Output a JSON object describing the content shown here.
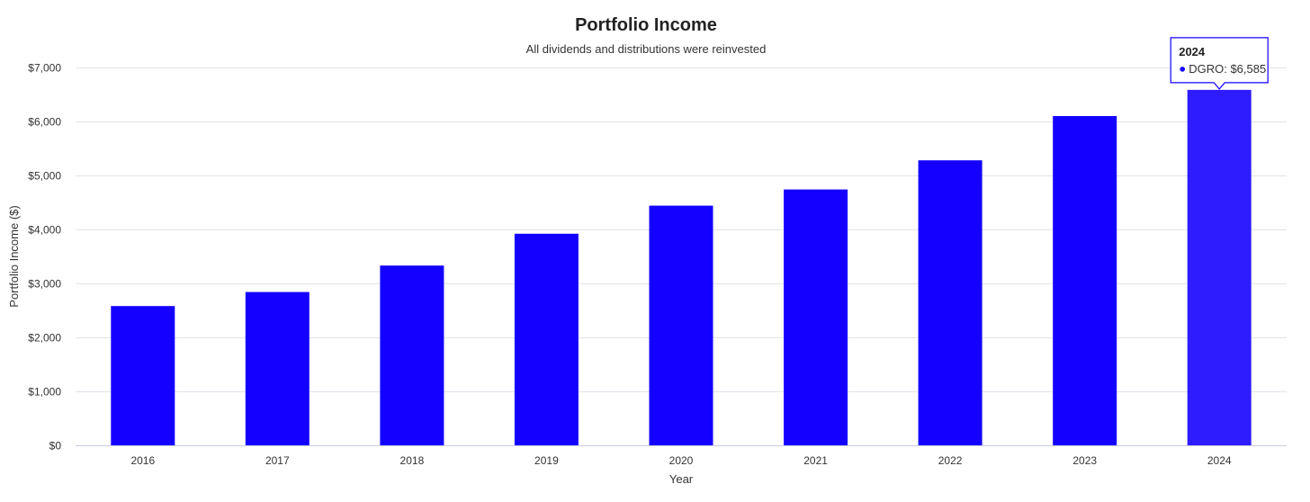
{
  "chart_data": {
    "type": "bar",
    "title": "Portfolio Income",
    "subtitle": "All dividends and distributions were reinvested",
    "xlabel": "Year",
    "ylabel": "Portfolio Income ($)",
    "categories": [
      "2016",
      "2017",
      "2018",
      "2019",
      "2020",
      "2021",
      "2022",
      "2023",
      "2024"
    ],
    "series": [
      {
        "name": "DGRO",
        "values": [
          2580,
          2840,
          3330,
          3920,
          4440,
          4740,
          5280,
          6100,
          6585
        ]
      }
    ],
    "ylim": [
      0,
      7000
    ],
    "yticks": [
      0,
      1000,
      2000,
      3000,
      4000,
      5000,
      6000,
      7000
    ],
    "ytick_labels": [
      "$0",
      "$1,000",
      "$2,000",
      "$3,000",
      "$4,000",
      "$5,000",
      "$6,000",
      "$7,000"
    ],
    "grid": true,
    "colors": {
      "bar": "#1400ff",
      "bar_highlight": "#2e1cff",
      "grid": "#e0e3ea",
      "axis": "#c8cbe0"
    },
    "tooltip": {
      "category": "2024",
      "title": "2024",
      "series_label": "DGRO: $6,585",
      "border_color": "#1400ff"
    }
  }
}
